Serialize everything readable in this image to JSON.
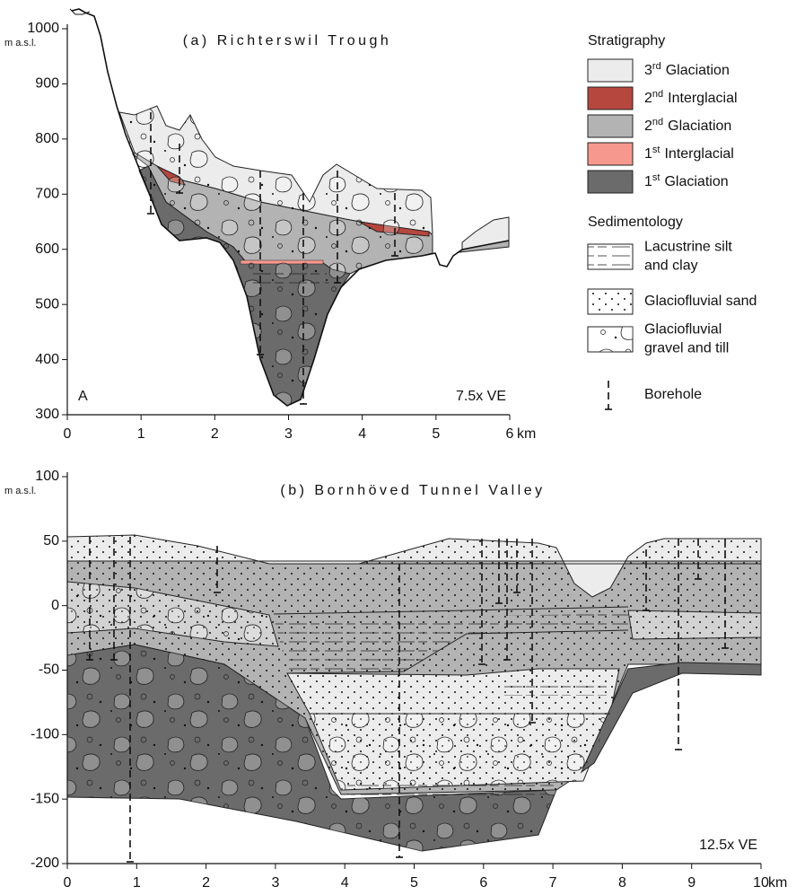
{
  "chart_data": [
    {
      "type": "cross-section",
      "title": "(a)  Richterswil Trough",
      "panel_label": "A",
      "annotation": "7.5x VE",
      "y_unit": "m a.s.l.",
      "x_unit": "km",
      "xlim": [
        0,
        6
      ],
      "xticks": [
        0,
        1,
        2,
        3,
        4,
        5,
        6
      ],
      "ylim": [
        300,
        1000
      ],
      "yticks": [
        300,
        400,
        500,
        600,
        700,
        800,
        900,
        1000
      ]
    },
    {
      "type": "cross-section",
      "title": "(b)  Bornhöved Tunnel Valley",
      "annotation": "12.5x VE",
      "y_unit": "m a.s.l.",
      "x_unit": "km",
      "xlim": [
        0,
        10
      ],
      "xticks": [
        0,
        1,
        2,
        3,
        4,
        5,
        6,
        7,
        8,
        9,
        10
      ],
      "ylim": [
        -200,
        100
      ],
      "yticks": [
        -200,
        -150,
        -100,
        -50,
        0,
        50,
        100
      ]
    }
  ],
  "legend": {
    "stratigraphy": {
      "title": "Stratigraphy",
      "items": [
        {
          "number": "3",
          "suffix": "rd",
          "label": "Glaciation",
          "color": "#ececec"
        },
        {
          "number": "2",
          "suffix": "nd",
          "label": "Interglacial",
          "color": "#b5473e"
        },
        {
          "number": "2",
          "suffix": "nd",
          "label": "Glaciation",
          "color": "#b3b3b3"
        },
        {
          "number": "1",
          "suffix": "st",
          "label": "Interglacial",
          "color": "#f6988e"
        },
        {
          "number": "1",
          "suffix": "st",
          "label": "Glaciation",
          "color": "#6b6b6b"
        }
      ]
    },
    "sedimentology": {
      "title": "Sedimentology",
      "items": [
        {
          "lines": [
            "Lacustrine silt",
            "and clay"
          ]
        },
        {
          "lines": [
            "Glaciofluvial sand"
          ]
        },
        {
          "lines": [
            "Glaciofluvial",
            "gravel and till"
          ]
        }
      ]
    },
    "borehole": "Borehole"
  }
}
